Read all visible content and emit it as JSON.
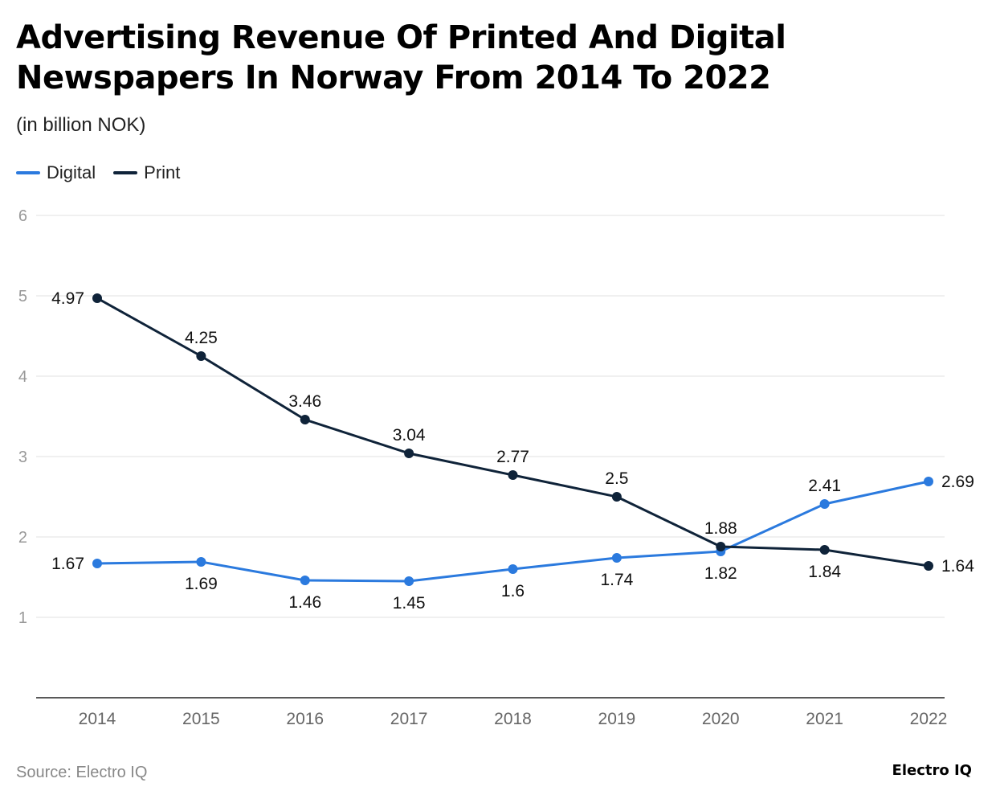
{
  "title": "Advertising Revenue Of Printed And Digital Newspapers In Norway From 2014 To 2022",
  "subtitle": "(in billion NOK)",
  "source": "Source: Electro IQ",
  "logo": "Electro IQ",
  "chart_data": {
    "type": "line",
    "x": [
      "2014",
      "2015",
      "2016",
      "2017",
      "2018",
      "2019",
      "2020",
      "2021",
      "2022"
    ],
    "ylim": [
      0,
      6
    ],
    "yticks": [
      1,
      2,
      3,
      4,
      5,
      6
    ],
    "grid": true,
    "legend_position": "top-left",
    "series": [
      {
        "name": "Digital",
        "color": "#2b7ade",
        "values": [
          1.67,
          1.69,
          1.46,
          1.45,
          1.6,
          1.74,
          1.82,
          2.41,
          2.69
        ]
      },
      {
        "name": "Print",
        "color": "#0f2339",
        "values": [
          4.97,
          4.25,
          3.46,
          3.04,
          2.77,
          2.5,
          1.88,
          1.84,
          1.64
        ]
      }
    ]
  }
}
